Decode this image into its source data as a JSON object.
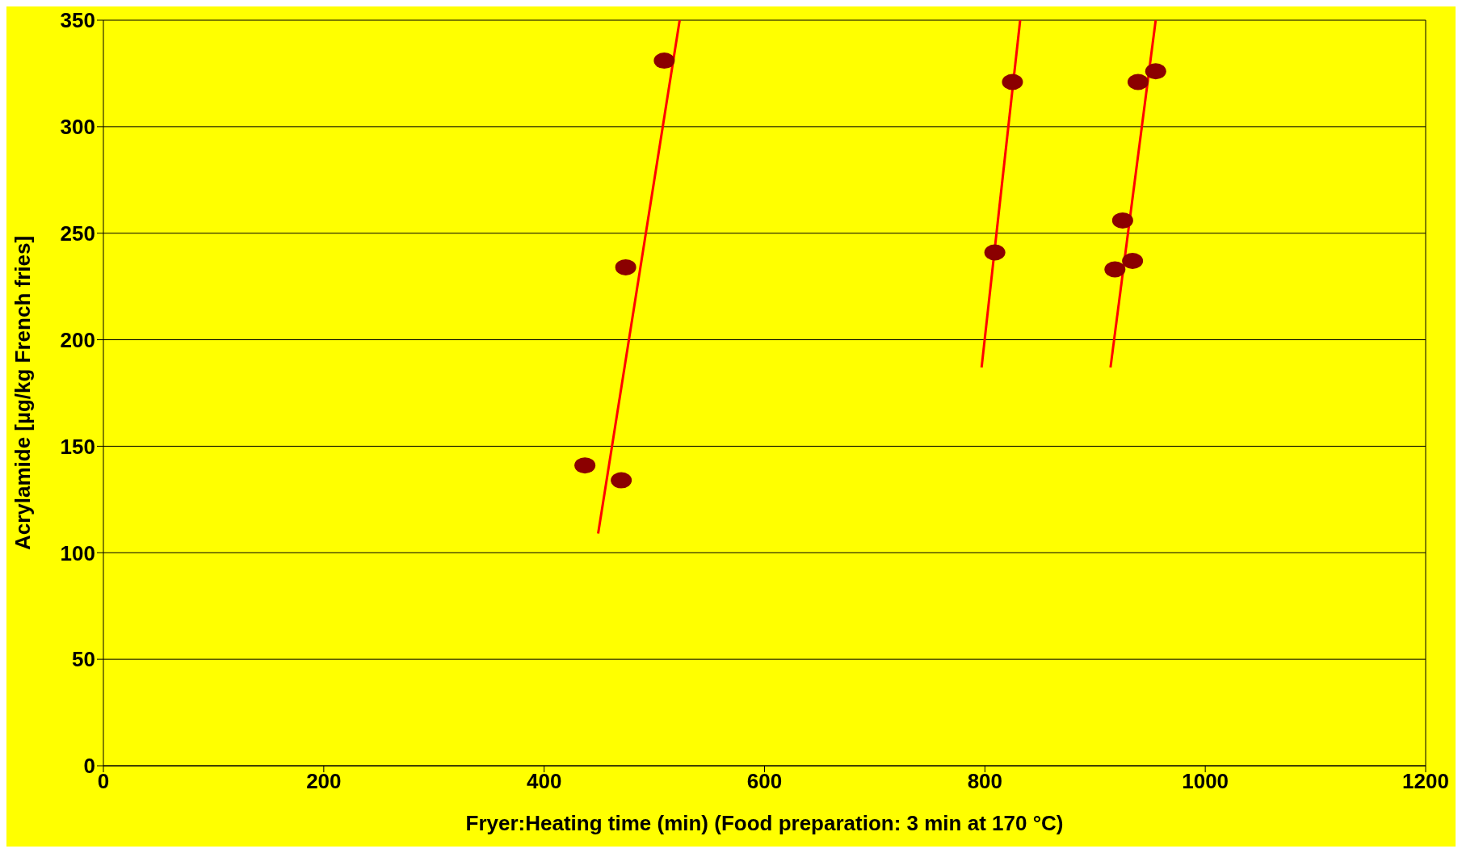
{
  "chart_data": {
    "type": "scatter",
    "xlabel": "Fryer:Heating time (min) (Food preparation: 3 min at 170 °C)",
    "ylabel": "Acrylamide [µg/kg French fries]",
    "xlim": [
      0,
      1200
    ],
    "xticks": [
      0,
      200,
      400,
      600,
      800,
      1000,
      1200
    ],
    "ylim": [
      0,
      350
    ],
    "yticks": [
      0,
      50,
      100,
      150,
      200,
      250,
      300,
      350
    ],
    "grid": "y",
    "series": [
      {
        "marker": "circle",
        "color": "#8b0000",
        "x": [
          437,
          470,
          474,
          509,
          809,
          825,
          918,
          925,
          934,
          939,
          955
        ],
        "values": [
          141,
          134,
          234,
          331,
          241,
          321,
          233,
          256,
          237,
          321,
          326
        ]
      },
      {
        "type": "line",
        "color": "#ff0000",
        "x": [
          449,
          523
        ],
        "values": [
          109,
          350
        ]
      },
      {
        "type": "line",
        "color": "#ff0000",
        "x": [
          797,
          832
        ],
        "values": [
          187,
          350
        ]
      },
      {
        "type": "line",
        "color": "#ff0000",
        "x": [
          914,
          955
        ],
        "values": [
          187,
          350
        ]
      }
    ]
  }
}
